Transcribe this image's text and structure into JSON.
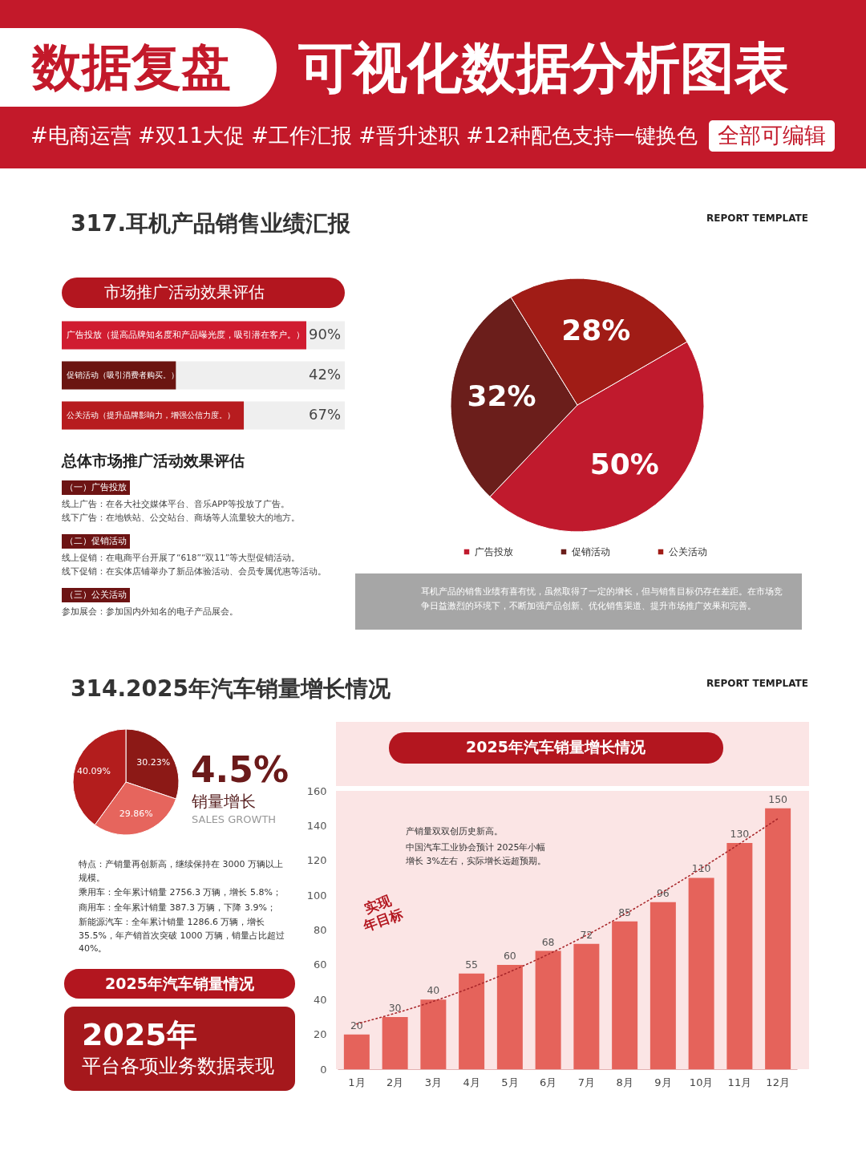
{
  "chart_data": [
    {
      "type": "other",
      "title": "数据复盘",
      "subtitle": "可视化数据分析图表",
      "annotations": [
        "#电商运营 #双11大促 #工作汇报 #晋升述职 #12种配色支持一键换色",
        "全部可编辑"
      ]
    },
    {
      "type": "other",
      "title": "317.耳机产品销售业绩汇报",
      "annotations": [
        "REPORT TEMPLATE"
      ]
    },
    {
      "type": "bar",
      "orientation": "horizontal",
      "title": "市场推广活动效果评估",
      "categories": [
        "广告投放（提高品牌知名度和产品曝光度，吸引潜在客户。）",
        "促销活动（吸引消费者购买。）",
        "公关活动（提升品牌影响力，增强公信力度。）"
      ],
      "values": [
        90,
        42,
        67
      ],
      "colors": [
        "#d01c30",
        "#6b1511",
        "#b71c1f"
      ],
      "value_labels": [
        "90%",
        "42%",
        "67%"
      ],
      "tick_labels": "y"
    },
    {
      "type": "other",
      "title": "总体市场推广活动效果评估",
      "annotations": [
        "（一）广告投放",
        "线上广告：在各大社交媒体平台、音乐APP等投放了广告。",
        "线下广告：在地铁站、公交站台、商场等人流量较大的地方。",
        "（二）促销活动",
        "线上促销：在电商平台开展了“618”“双11”等大型促销活动。",
        "线下促销：在实体店铺举办了新品体验活动、会员专属优惠等活动。",
        "（三）公关活动",
        "参加展会：参加国内外知名的电子产品展会。"
      ]
    },
    {
      "type": "pie",
      "categories": [
        "广告投放",
        "促销活动",
        "公关活动"
      ],
      "values": [
        50,
        32,
        28
      ],
      "colors": [
        "#c01a2d",
        "#6b1e1b",
        "#a01c16"
      ],
      "value_labels": [
        "50%",
        "32%",
        "28%"
      ],
      "legend": "bottom",
      "annotations": [
        "耳机产品的销售业绩有喜有忧，虽然取得了一定的增长，但与销售目标仍存在差距。在市场竞争日益激烈的环境下，不断加强产品创新、优化销售渠道、提升市场推广效果和完善。"
      ]
    },
    {
      "type": "other",
      "title": "314.2025年汽车销量增长情况",
      "annotations": [
        "REPORT TEMPLATE"
      ]
    },
    {
      "type": "pie",
      "categories": [
        null,
        null,
        null
      ],
      "values": [
        30.23,
        29.86,
        40.09
      ],
      "colors": [
        "#8c1916",
        "#e6655d",
        "#b31d1d"
      ],
      "value_labels": [
        "30.23%",
        "29.86%",
        "40.09%"
      ],
      "annotations": [
        "4.5%",
        "销量增长",
        "SALES GROWTH"
      ]
    },
    {
      "type": "other",
      "annotations": [
        "特点：产销量再创新高，继续保持在 3000 万辆以上规模。",
        "乘用车：全年累计销量 2756.3 万辆，增长 5.8%；",
        "商用车：全年累计销量 387.3 万辆，下降 3.9%；",
        "新能源汽车：全年累计销量 1286.6 万辆，增长 35.5%，年产销首次突破 1000 万辆，销量占比超过 40%。",
        "2025年汽车销量情况",
        "2025年",
        "平台各项业务数据表现"
      ]
    },
    {
      "type": "bar",
      "title": "2025年汽车销量增长情况",
      "categories": [
        "1月",
        "2月",
        "3月",
        "4月",
        "5月",
        "6月",
        "7月",
        "8月",
        "9月",
        "10月",
        "11月",
        "12月"
      ],
      "series": [
        {
          "color": "#e5635b",
          "values": [
            20,
            30,
            40,
            55,
            60,
            68,
            72,
            85,
            96,
            110,
            130,
            150
          ],
          "value_labels": [
            "20",
            "30",
            "40",
            "55",
            "60",
            "68",
            "72",
            "85",
            "96",
            "110",
            "130",
            "150"
          ]
        },
        {
          "type": "line",
          "x": [
            "1月",
            "3月",
            "7月",
            "9月",
            "12月"
          ],
          "values": [
            26,
            39,
            77,
            102,
            144
          ],
          "color": "#a8262a",
          "line_style": "dotted"
        }
      ],
      "ylim": [
        0,
        160
      ],
      "yticks": [
        0,
        20,
        40,
        60,
        80,
        100,
        120,
        140,
        160
      ],
      "annotations": [
        "产销量双双创历史新高。",
        "中国汽车工业协会预计 2025年小幅增长 3%左右，实际增长远超预期。",
        "实现年目标"
      ]
    }
  ]
}
